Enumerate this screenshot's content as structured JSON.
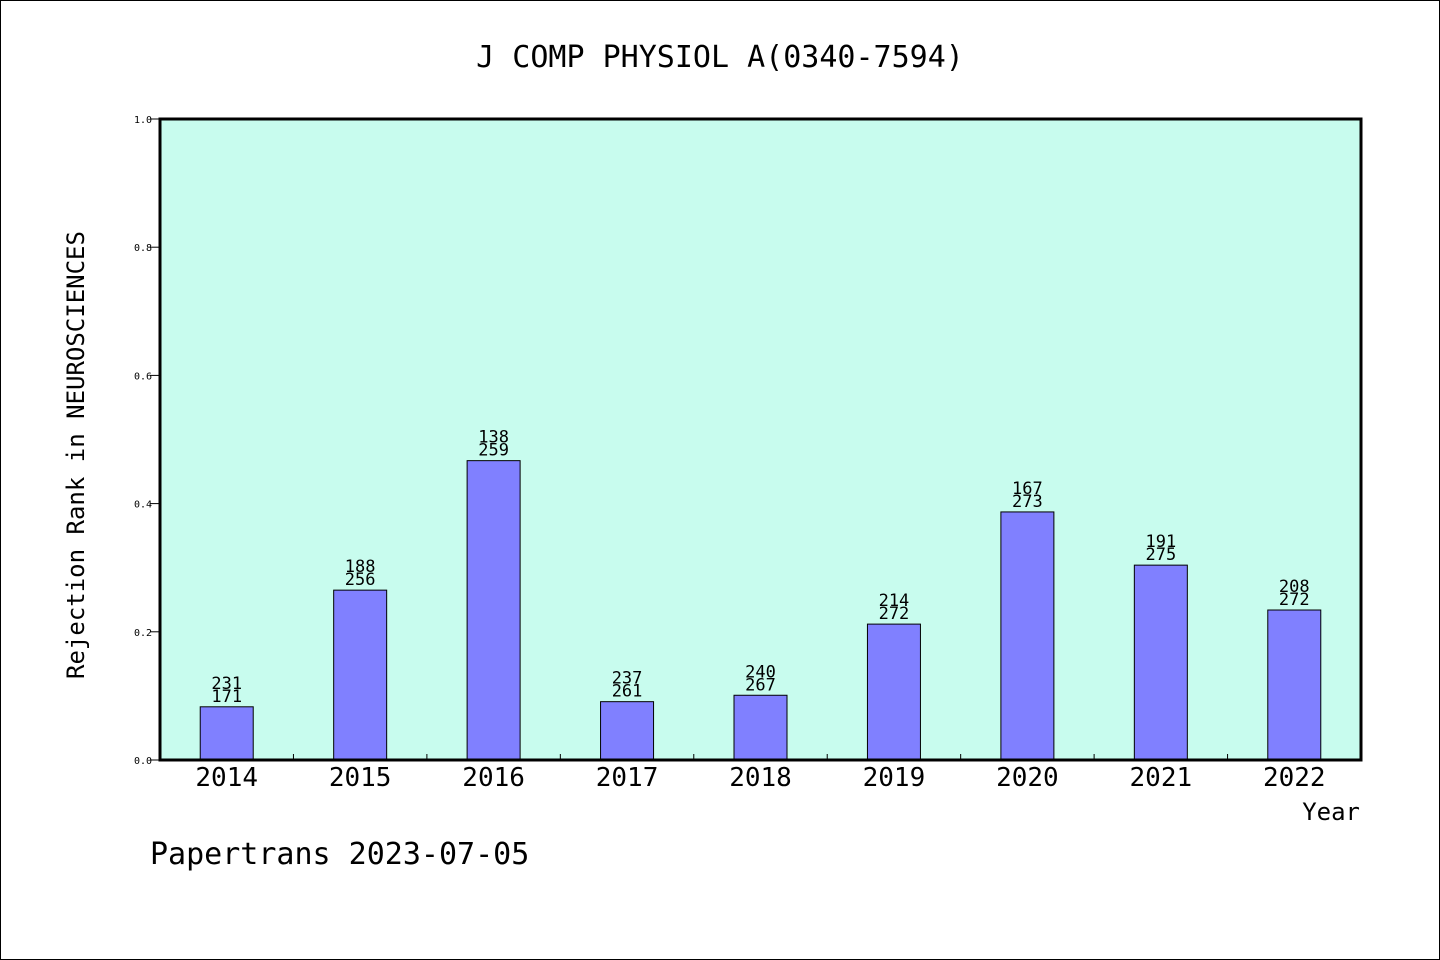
{
  "chart_data": {
    "type": "bar",
    "title": "J COMP PHYSIOL A(0340-7594)",
    "xlabel": "Year",
    "ylabel": "Rejection Rank in NEUROSCIENCES",
    "footer": "Papertrans 2023-07-05",
    "categories": [
      "2014",
      "2015",
      "2016",
      "2017",
      "2018",
      "2019",
      "2020",
      "2021",
      "2022"
    ],
    "series": [
      {
        "values": [
          0.083,
          0.265,
          0.467,
          0.091,
          0.101,
          0.212,
          0.387,
          0.304,
          0.234
        ],
        "labels_top": [
          "231",
          "188",
          "138",
          "237",
          "240",
          "214",
          "167",
          "191",
          "208"
        ],
        "labels_bottom": [
          "171",
          "256",
          "259",
          "261",
          "267",
          "272",
          "273",
          "275",
          "272"
        ]
      }
    ],
    "ylim": [
      0,
      1.0
    ],
    "yticks": [
      "0.0",
      "0.2",
      "0.4",
      "0.6",
      "0.8",
      "1.0"
    ],
    "grid": false,
    "colors": {
      "plot_background": "#c8fcee",
      "bar_fill": "#8080ff",
      "bar_stroke": "#000000",
      "axis": "#000000"
    }
  }
}
